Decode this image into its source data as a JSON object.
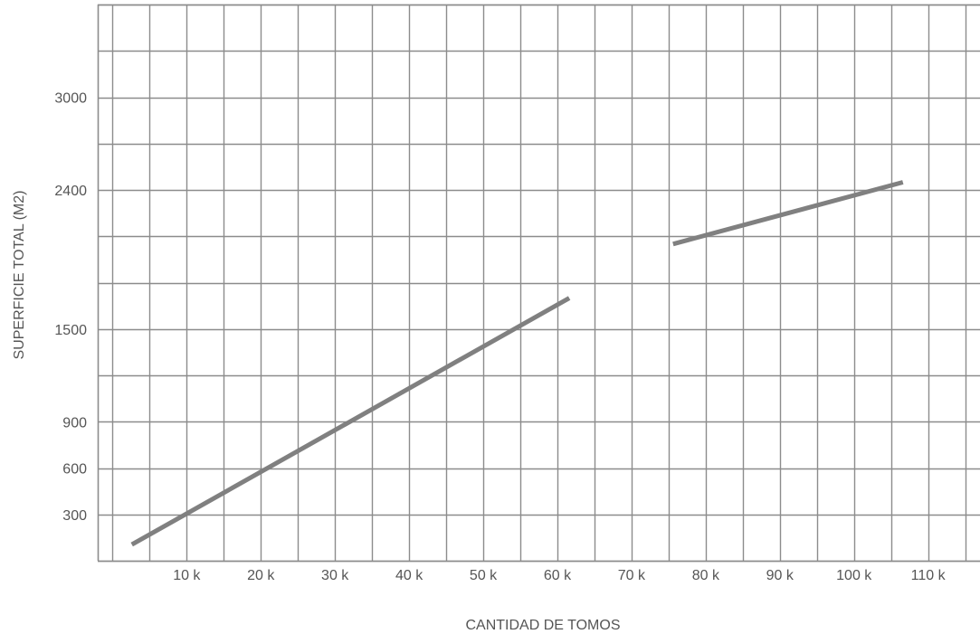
{
  "chart_data": {
    "type": "line",
    "title": "",
    "xlabel": "CANTIDAD DE TOMOS",
    "ylabel": "SUPERFICIE TOTAL (M2)",
    "x_unit_suffix": "k",
    "xlim": [
      -2,
      117
    ],
    "ylim": [
      0,
      3600
    ],
    "x_grid_step": 5,
    "y_grid_step": 300,
    "x_ticks": [
      10,
      20,
      30,
      40,
      50,
      60,
      70,
      80,
      90,
      100,
      110
    ],
    "x_tick_labels": [
      "10 k",
      "20 k",
      "30 k",
      "40 k",
      "50 k",
      "60 k",
      "70 k",
      "80 k",
      "90 k",
      "100 k",
      "110 k"
    ],
    "y_ticks": [
      300,
      600,
      900,
      1500,
      2400,
      3000
    ],
    "y_tick_labels": [
      "300",
      "600",
      "900",
      "1500",
      "2400",
      "3000"
    ],
    "grid": true,
    "legend": "none",
    "line_color": "#808080",
    "grid_color": "#8c8c8c",
    "series": [
      {
        "x": [
          2.6,
          61.6
        ],
        "y": [
          105,
          1700
        ]
      },
      {
        "x": [
          75.6,
          106.6
        ],
        "y": [
          2050,
          2450
        ]
      }
    ]
  }
}
